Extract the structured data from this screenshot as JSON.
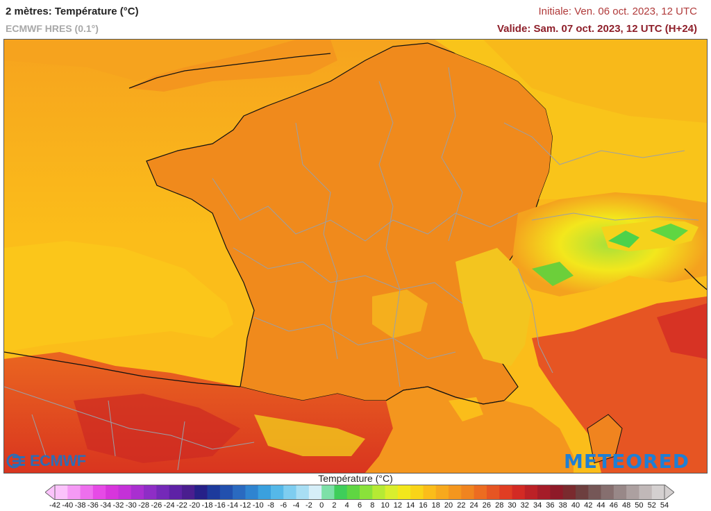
{
  "header": {
    "title": "2 mètres: Température (°C)",
    "model": "ECMWF HRES (0.1°)",
    "initiale": "Initiale: Ven. 06 oct. 2023, 12 UTC",
    "valide": "Valide: Sam. 07 oct. 2023, 12 UTC (H+24)"
  },
  "map": {
    "region": "France and surroundings",
    "palette": {
      "sea_warm": "#fbbd1a",
      "sea_orange": "#f4a21e",
      "land_mid": "#f08a1c",
      "land_hot": "#ea6620",
      "land_hotter": "#e44524",
      "alps_yellow": "#f5d21c",
      "alps_green": "#4dd24a",
      "border_line": "#9aa0a8",
      "coast_line": "#111111"
    }
  },
  "logos": {
    "left": "ECMWF",
    "right": "METEORED"
  },
  "legend": {
    "title": "Température (°C)",
    "labels": [
      "-42",
      "-40",
      "-38",
      "-36",
      "-34",
      "-32",
      "-30",
      "-28",
      "-26",
      "-24",
      "-22",
      "-20",
      "-18",
      "-16",
      "-14",
      "-12",
      "-10",
      "-8",
      "-6",
      "-4",
      "-2",
      "0",
      "2",
      "4",
      "6",
      "8",
      "10",
      "12",
      "14",
      "16",
      "18",
      "20",
      "22",
      "24",
      "26",
      "28",
      "30",
      "32",
      "34",
      "36",
      "38",
      "40",
      "42",
      "44",
      "46",
      "48",
      "50",
      "52",
      "54"
    ],
    "colors": [
      "#fbc3fb",
      "#f59af5",
      "#ee6fee",
      "#e64ae6",
      "#d735dc",
      "#c431d8",
      "#a92fd0",
      "#8e2dc6",
      "#7429b8",
      "#5e22a6",
      "#4a1e8f",
      "#262088",
      "#1d3a9c",
      "#2250ae",
      "#2a6ac0",
      "#2f84d0",
      "#3aa0de",
      "#55b8e8",
      "#7ecdf0",
      "#a8def4",
      "#d6eef8",
      "#7de0a8",
      "#3fce5a",
      "#5fd642",
      "#8ae23a",
      "#b6ea34",
      "#d9ee2e",
      "#f3e71c",
      "#f9d418",
      "#fbbd1a",
      "#f7a91d",
      "#f4961e",
      "#f0841f",
      "#ec6c21",
      "#e65523",
      "#e03d23",
      "#d32a24",
      "#bc2126",
      "#a51c28",
      "#8e1a28",
      "#7a2a2e",
      "#6d3f3f",
      "#755757",
      "#866f6f",
      "#988888",
      "#aca0a0",
      "#c0b8b8",
      "#d4d0d0"
    ]
  }
}
